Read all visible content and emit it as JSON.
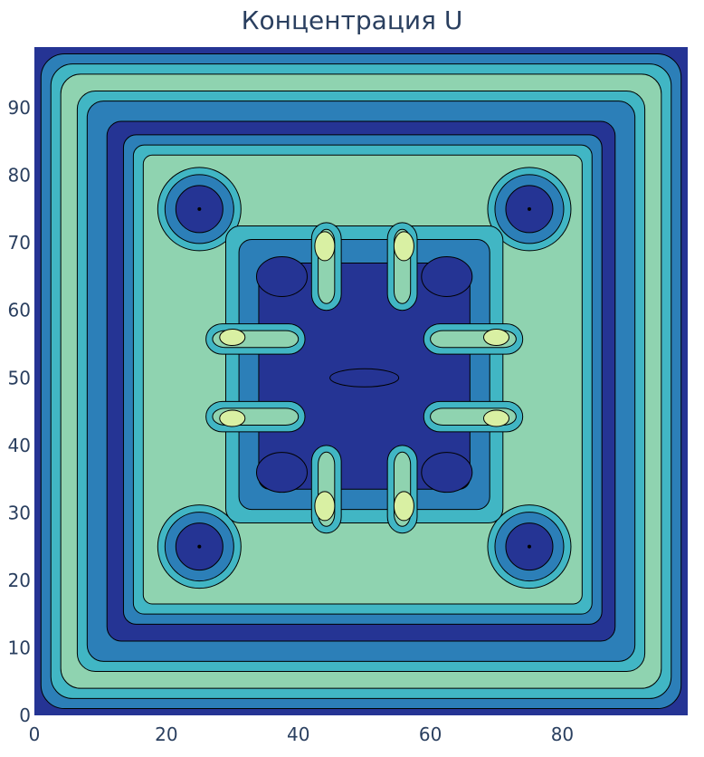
{
  "chart_data": {
    "type": "heatmap",
    "style": "filled-contour",
    "title": "Концентрация U",
    "xlabel": "",
    "ylabel": "",
    "xlim": [
      0,
      99
    ],
    "ylim": [
      0,
      99
    ],
    "x_ticks": [
      0,
      20,
      40,
      60,
      80
    ],
    "y_ticks": [
      0,
      10,
      20,
      30,
      40,
      50,
      60,
      70,
      80,
      90
    ],
    "x_tick_labels": [
      "0",
      "20",
      "40",
      "60",
      "80"
    ],
    "y_tick_labels": [
      "0",
      "10",
      "20",
      "30",
      "40",
      "50",
      "60",
      "70",
      "80",
      "90"
    ],
    "grid": false,
    "legend": "none",
    "colorscale": [
      "#253494",
      "#2c7fb8",
      "#41b6c4",
      "#8fd3b0",
      "#d9f0a3"
    ],
    "contour_line_color": "#000000",
    "features": [
      {
        "kind": "max",
        "x": 44,
        "y": 69.5
      },
      {
        "kind": "max",
        "x": 56,
        "y": 69.5
      },
      {
        "kind": "max",
        "x": 30,
        "y": 56
      },
      {
        "kind": "max",
        "x": 70,
        "y": 56
      },
      {
        "kind": "max",
        "x": 30,
        "y": 44
      },
      {
        "kind": "max",
        "x": 70,
        "y": 44
      },
      {
        "kind": "max",
        "x": 44,
        "y": 31
      },
      {
        "kind": "max",
        "x": 56,
        "y": 31
      },
      {
        "kind": "min",
        "x": 25,
        "y": 75
      },
      {
        "kind": "min",
        "x": 75,
        "y": 75
      },
      {
        "kind": "min",
        "x": 25,
        "y": 25
      },
      {
        "kind": "min",
        "x": 75,
        "y": 25
      }
    ]
  }
}
